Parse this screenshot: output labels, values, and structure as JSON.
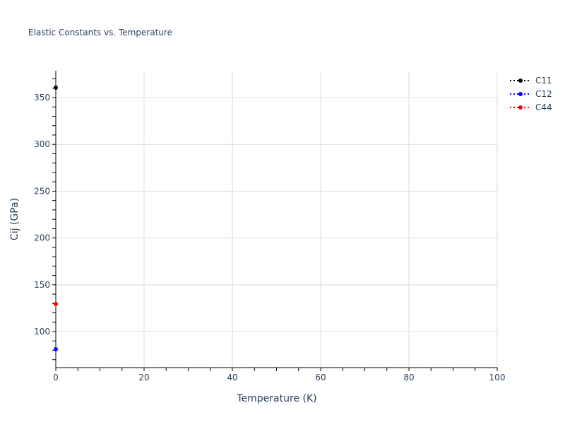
{
  "chart_data": {
    "type": "scatter",
    "mode": "lines+markers",
    "title": "Elastic Constants vs. Temperature",
    "xlabel": "Temperature (K)",
    "ylabel": "Cij (GPa)",
    "xlim": [
      0,
      100
    ],
    "ylim": [
      61.5,
      378.7
    ],
    "xticks": [
      0,
      20,
      40,
      60,
      80,
      100
    ],
    "yticks": [
      100,
      150,
      200,
      250,
      300,
      350
    ],
    "grid": true,
    "legend_position": "top-right",
    "series": [
      {
        "name": "C11",
        "color": "#000000",
        "line": "dotted",
        "x": [
          0
        ],
        "y": [
          360.6
        ]
      },
      {
        "name": "C12",
        "color": "#0000ff",
        "line": "dotted",
        "x": [
          0
        ],
        "y": [
          81.1
        ]
      },
      {
        "name": "C44",
        "color": "#ff0000",
        "line": "dotted",
        "x": [
          0
        ],
        "y": [
          129.5
        ]
      }
    ]
  }
}
